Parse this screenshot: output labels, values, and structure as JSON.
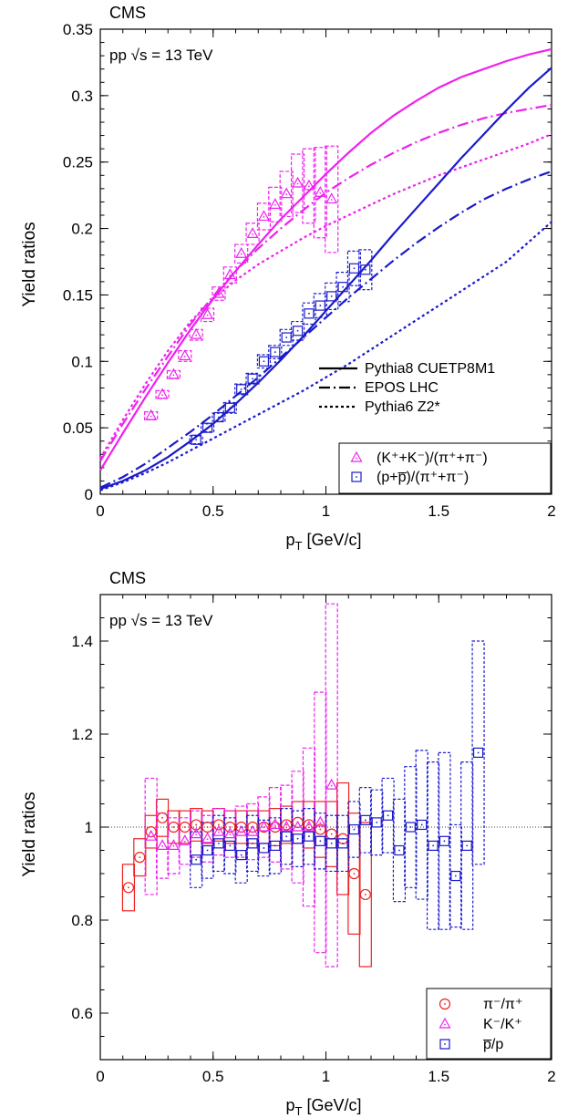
{
  "chart_data": [
    {
      "type": "scatter",
      "label": "CMS",
      "annotation": "pp √s = 13 TeV",
      "xlabel": "p_T [GeV/c]",
      "ylabel": "Yield ratios",
      "xlim": [
        0,
        2
      ],
      "ylim": [
        0,
        0.35
      ],
      "xticks": [
        "0",
        "0.5",
        "1",
        "1.5",
        "2"
      ],
      "yticks": [
        "0",
        "0.05",
        "0.1",
        "0.15",
        "0.2",
        "0.25",
        "0.3",
        "0.35"
      ],
      "model_legend": [
        "Pythia8 CUETP8M1",
        "EPOS LHC",
        "Pythia6 Z2*"
      ],
      "data_legend": [
        "(K⁺+K⁻)/(π⁺+π⁻)",
        "(p+p̅)/(π⁺+π⁻)"
      ],
      "colors": {
        "kaon": "#ee22ee",
        "proton": "#1a1acc"
      },
      "series": [
        {
          "name": "(K⁺+K⁻)/(π⁺+π⁻)",
          "color": "#ee22ee",
          "marker": "triangle",
          "x": [
            0.225,
            0.275,
            0.325,
            0.375,
            0.425,
            0.475,
            0.525,
            0.575,
            0.625,
            0.675,
            0.725,
            0.775,
            0.825,
            0.875,
            0.925,
            0.975,
            1.025
          ],
          "y": [
            0.059,
            0.075,
            0.09,
            0.104,
            0.12,
            0.135,
            0.151,
            0.165,
            0.181,
            0.196,
            0.209,
            0.218,
            0.226,
            0.234,
            0.232,
            0.227,
            0.222
          ],
          "err": [
            0.003,
            0.003,
            0.003,
            0.004,
            0.004,
            0.005,
            0.005,
            0.006,
            0.007,
            0.008,
            0.01,
            0.013,
            0.017,
            0.022,
            0.028,
            0.034,
            0.04
          ]
        },
        {
          "name": "(p+p̅)/(π⁺+π⁻)",
          "color": "#1a1acc",
          "marker": "square",
          "x": [
            0.425,
            0.475,
            0.525,
            0.575,
            0.625,
            0.675,
            0.725,
            0.775,
            0.825,
            0.875,
            0.925,
            0.975,
            1.025,
            1.075,
            1.125,
            1.175
          ],
          "y": [
            0.041,
            0.05,
            0.058,
            0.065,
            0.079,
            0.087,
            0.1,
            0.107,
            0.118,
            0.123,
            0.136,
            0.142,
            0.149,
            0.156,
            0.17,
            0.169
          ],
          "err": [
            0.003,
            0.003,
            0.003,
            0.004,
            0.004,
            0.004,
            0.005,
            0.005,
            0.006,
            0.007,
            0.008,
            0.009,
            0.01,
            0.011,
            0.013,
            0.015
          ]
        }
      ],
      "models": [
        {
          "name": "Pythia8 CUETP8M1",
          "style": "solid",
          "color": "#ee22ee",
          "x": [
            0,
            0.1,
            0.2,
            0.3,
            0.4,
            0.5,
            0.6,
            0.7,
            0.8,
            0.9,
            1.0,
            1.1,
            1.2,
            1.3,
            1.4,
            1.5,
            1.6,
            1.7,
            1.8,
            1.9,
            2.0
          ],
          "y": [
            0.018,
            0.046,
            0.073,
            0.099,
            0.124,
            0.147,
            0.168,
            0.188,
            0.207,
            0.224,
            0.241,
            0.257,
            0.272,
            0.285,
            0.296,
            0.306,
            0.314,
            0.32,
            0.326,
            0.331,
            0.335
          ]
        },
        {
          "name": "EPOS LHC",
          "style": "dashdot",
          "color": "#ee22ee",
          "x": [
            0,
            0.1,
            0.2,
            0.3,
            0.4,
            0.5,
            0.6,
            0.7,
            0.8,
            0.9,
            1.0,
            1.1,
            1.2,
            1.3,
            1.4,
            1.5,
            1.6,
            1.7,
            1.8,
            1.9,
            2.0
          ],
          "y": [
            0.025,
            0.053,
            0.079,
            0.104,
            0.128,
            0.149,
            0.168,
            0.185,
            0.2,
            0.214,
            0.227,
            0.238,
            0.248,
            0.257,
            0.265,
            0.272,
            0.278,
            0.283,
            0.287,
            0.29,
            0.293
          ]
        },
        {
          "name": "Pythia6 Z2*",
          "style": "dotted",
          "color": "#ee22ee",
          "x": [
            0,
            0.1,
            0.2,
            0.3,
            0.4,
            0.5,
            0.6,
            0.7,
            0.8,
            0.9,
            1.0,
            1.1,
            1.2,
            1.3,
            1.4,
            1.5,
            1.6,
            1.7,
            1.8,
            1.9,
            2.0
          ],
          "y": [
            0.027,
            0.056,
            0.083,
            0.108,
            0.13,
            0.147,
            0.161,
            0.173,
            0.183,
            0.193,
            0.202,
            0.21,
            0.218,
            0.226,
            0.233,
            0.24,
            0.246,
            0.252,
            0.258,
            0.264,
            0.271
          ]
        },
        {
          "name": "Pythia8 CUETP8M1",
          "style": "solid",
          "color": "#1a1acc",
          "x": [
            0,
            0.1,
            0.2,
            0.3,
            0.4,
            0.5,
            0.6,
            0.7,
            0.8,
            0.9,
            1.0,
            1.1,
            1.2,
            1.3,
            1.4,
            1.5,
            1.6,
            1.7,
            1.8,
            1.9,
            2.0
          ],
          "y": [
            0.004,
            0.01,
            0.018,
            0.028,
            0.04,
            0.053,
            0.068,
            0.084,
            0.101,
            0.119,
            0.138,
            0.157,
            0.176,
            0.196,
            0.215,
            0.234,
            0.253,
            0.271,
            0.289,
            0.306,
            0.321
          ]
        },
        {
          "name": "EPOS LHC",
          "style": "dashdot",
          "color": "#1a1acc",
          "x": [
            0,
            0.1,
            0.2,
            0.3,
            0.4,
            0.5,
            0.6,
            0.7,
            0.8,
            0.9,
            1.0,
            1.1,
            1.2,
            1.3,
            1.4,
            1.5,
            1.6,
            1.7,
            1.8,
            1.9,
            2.0
          ],
          "y": [
            0.005,
            0.013,
            0.023,
            0.035,
            0.047,
            0.06,
            0.074,
            0.088,
            0.103,
            0.118,
            0.133,
            0.148,
            0.162,
            0.176,
            0.189,
            0.201,
            0.212,
            0.222,
            0.23,
            0.237,
            0.243
          ]
        },
        {
          "name": "Pythia6 Z2*",
          "style": "dotted",
          "color": "#1a1acc",
          "x": [
            0,
            0.1,
            0.2,
            0.3,
            0.4,
            0.5,
            0.6,
            0.7,
            0.8,
            0.9,
            1.0,
            1.1,
            1.2,
            1.3,
            1.4,
            1.5,
            1.6,
            1.7,
            1.8,
            1.9,
            2.0
          ],
          "y": [
            0.003,
            0.009,
            0.016,
            0.024,
            0.033,
            0.042,
            0.051,
            0.06,
            0.069,
            0.078,
            0.088,
            0.098,
            0.109,
            0.12,
            0.131,
            0.142,
            0.153,
            0.164,
            0.175,
            0.19,
            0.205
          ]
        }
      ]
    },
    {
      "type": "scatter",
      "label": "CMS",
      "annotation": "pp √s = 13 TeV",
      "xlabel": "p_T [GeV/c]",
      "ylabel": "Yield ratios",
      "xlim": [
        0,
        2
      ],
      "ylim": [
        0.5,
        1.5
      ],
      "xticks": [
        "0",
        "0.5",
        "1",
        "1.5",
        "2"
      ],
      "yticks": [
        "0.6",
        "0.8",
        "1",
        "1.2",
        "1.4"
      ],
      "reference_line": 1,
      "data_legend": [
        "π⁻/π⁺",
        "K⁻/K⁺",
        "p̅/p"
      ],
      "colors": {
        "pion": "#ee2222",
        "kaon": "#ee22ee",
        "proton": "#1a1acc"
      },
      "series": [
        {
          "name": "π⁻/π⁺",
          "color": "#ee2222",
          "marker": "circle",
          "x": [
            0.125,
            0.175,
            0.225,
            0.275,
            0.325,
            0.375,
            0.425,
            0.475,
            0.525,
            0.575,
            0.625,
            0.675,
            0.725,
            0.775,
            0.825,
            0.875,
            0.925,
            0.975,
            1.025,
            1.075,
            1.125,
            1.175
          ],
          "y": [
            0.87,
            0.935,
            0.99,
            1.02,
            1.0,
            1.0,
            1.005,
            1.0,
            1.005,
            1.0,
            1.0,
            1.0,
            1.0,
            1.0,
            1.005,
            1.01,
            1.005,
            0.995,
            0.985,
            0.975,
            0.9,
            0.855
          ],
          "err": [
            0.05,
            0.04,
            0.035,
            0.04,
            0.035,
            0.035,
            0.035,
            0.035,
            0.035,
            0.035,
            0.035,
            0.035,
            0.035,
            0.04,
            0.04,
            0.045,
            0.05,
            0.06,
            0.07,
            0.12,
            0.13,
            0.155
          ]
        },
        {
          "name": "K⁻/K⁺",
          "color": "#ee22ee",
          "marker": "triangle",
          "x": [
            0.225,
            0.275,
            0.325,
            0.375,
            0.425,
            0.475,
            0.525,
            0.575,
            0.625,
            0.675,
            0.725,
            0.775,
            0.825,
            0.875,
            0.925,
            0.975,
            1.025
          ],
          "y": [
            0.98,
            0.96,
            0.96,
            0.97,
            0.985,
            0.975,
            0.99,
            0.985,
            0.99,
            0.99,
            1.0,
            1.005,
            1.0,
            1.0,
            1.0,
            1.01,
            1.09
          ],
          "err": [
            0.125,
            0.07,
            0.06,
            0.05,
            0.05,
            0.05,
            0.05,
            0.05,
            0.055,
            0.06,
            0.065,
            0.08,
            0.09,
            0.12,
            0.17,
            0.28,
            0.39
          ]
        },
        {
          "name": "p̅/p",
          "color": "#1a1acc",
          "marker": "square",
          "x": [
            0.425,
            0.475,
            0.525,
            0.575,
            0.625,
            0.675,
            0.725,
            0.775,
            0.825,
            0.875,
            0.925,
            0.975,
            1.025,
            1.075,
            1.125,
            1.175,
            1.225,
            1.275,
            1.325,
            1.375,
            1.425,
            1.475,
            1.525,
            1.575,
            1.625,
            1.675
          ],
          "y": [
            0.93,
            0.95,
            0.965,
            0.96,
            0.94,
            0.965,
            0.955,
            0.96,
            0.98,
            0.975,
            0.98,
            0.97,
            0.965,
            0.965,
            0.995,
            1.015,
            1.01,
            1.025,
            0.95,
            1.0,
            1.005,
            0.96,
            0.97,
            0.895,
            0.96,
            1.16
          ],
          "err": [
            0.06,
            0.06,
            0.06,
            0.06,
            0.06,
            0.06,
            0.06,
            0.06,
            0.06,
            0.06,
            0.06,
            0.06,
            0.06,
            0.06,
            0.06,
            0.07,
            0.07,
            0.08,
            0.11,
            0.13,
            0.16,
            0.18,
            0.19,
            0.11,
            0.18,
            0.24
          ]
        }
      ]
    }
  ]
}
